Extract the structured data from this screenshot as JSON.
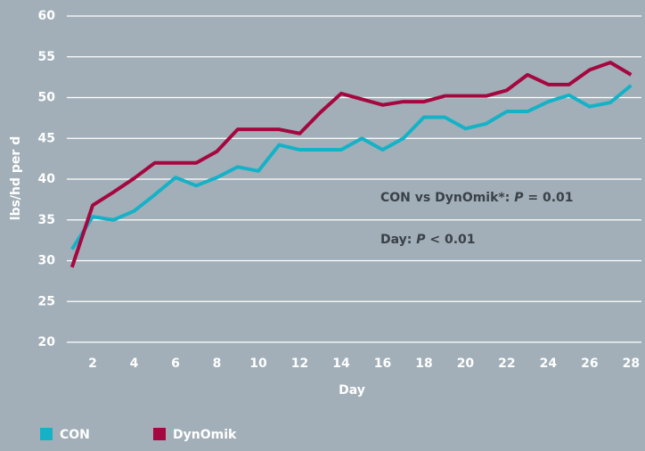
{
  "chart_data": {
    "type": "line",
    "x_label": "Day",
    "y_label": "lbs/hd per d",
    "x": [
      1,
      2,
      3,
      4,
      5,
      6,
      7,
      8,
      9,
      10,
      11,
      12,
      13,
      14,
      15,
      16,
      17,
      18,
      19,
      20,
      21,
      22,
      23,
      24,
      25,
      26,
      27,
      28
    ],
    "series": [
      {
        "name": "CON",
        "color": "#15b2c7",
        "values": [
          31.4,
          35.4,
          35.0,
          36.1,
          38.1,
          40.2,
          39.2,
          40.2,
          41.5,
          41.0,
          44.2,
          43.6,
          43.6,
          43.6,
          45.0,
          43.6,
          45.0,
          47.6,
          47.6,
          46.2,
          46.8,
          48.3,
          48.3,
          49.5,
          50.3,
          48.9,
          49.4,
          51.5
        ]
      },
      {
        "name": "DynOmik",
        "color": "#a5073f",
        "values": [
          29.2,
          36.8,
          38.4,
          40.1,
          42.0,
          42.0,
          42.0,
          43.4,
          46.1,
          46.1,
          46.1,
          45.6,
          48.2,
          50.5,
          49.8,
          49.1,
          49.5,
          49.5,
          50.2,
          50.2,
          50.2,
          50.9,
          52.8,
          51.6,
          51.6,
          53.4,
          54.3,
          52.8
        ]
      }
    ],
    "xlim": [
      0.75,
      28.5
    ],
    "xticks": [
      2,
      4,
      6,
      8,
      10,
      12,
      14,
      16,
      18,
      20,
      22,
      24,
      26,
      28
    ],
    "ylim": [
      20,
      60
    ],
    "yticks": [
      20,
      25,
      30,
      35,
      40,
      45,
      50,
      55,
      60
    ],
    "grid": true,
    "annotations": [
      [
        "CON vs DynOmik*: ",
        "P",
        " = 0.01"
      ],
      [
        "Day: ",
        "P",
        " < 0.01"
      ]
    ]
  }
}
